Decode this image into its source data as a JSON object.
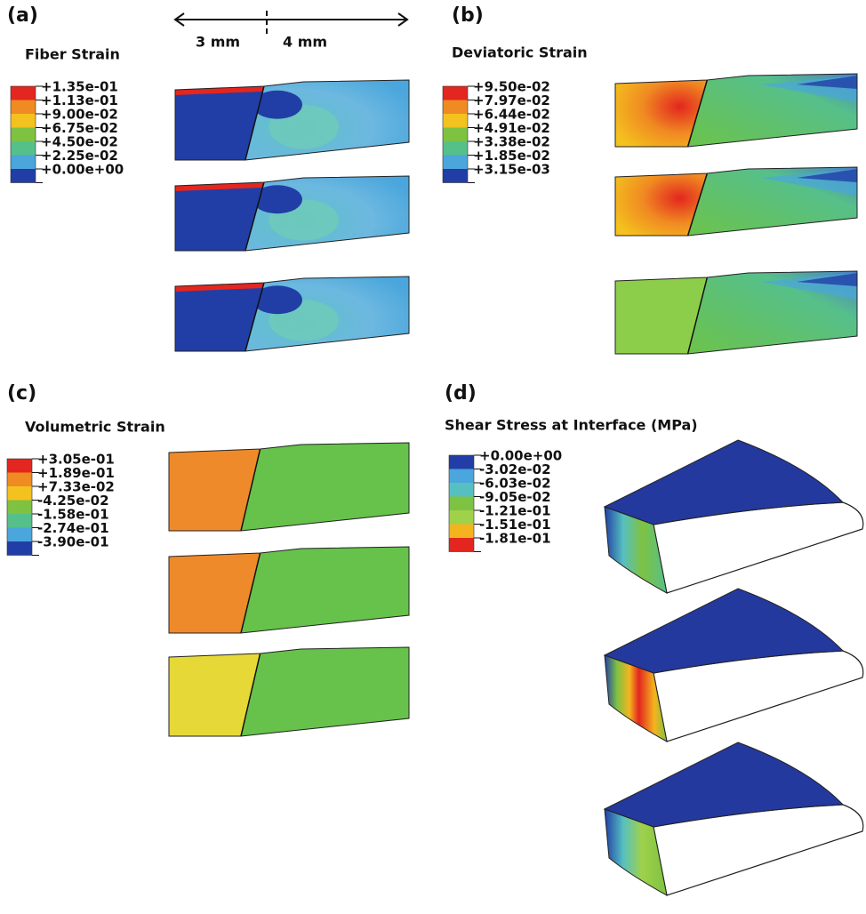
{
  "scale": {
    "left": "3 mm",
    "right": "4 mm"
  },
  "panels": [
    {
      "label": "(a)",
      "title": "Fiber Strain",
      "legend": {
        "labels": [
          "+1.35e-01",
          "+1.13e-01",
          "+9.00e-02",
          "+6.75e-02",
          "+4.50e-02",
          "+2.25e-02",
          "+0.00e+00"
        ],
        "colors": [
          "#e3261f",
          "#f08a22",
          "#f4c21e",
          "#7ec242",
          "#56c08a",
          "#4aa6dc",
          "#213ea6"
        ]
      }
    },
    {
      "label": "(b)",
      "title": "Deviatoric Strain",
      "legend": {
        "labels": [
          "+9.50e-02",
          "+7.97e-02",
          "+6.44e-02",
          "+4.91e-02",
          "+3.38e-02",
          "+1.85e-02",
          "+3.15e-03"
        ],
        "colors": [
          "#e3261f",
          "#f08a22",
          "#f4c21e",
          "#7ec242",
          "#56c08a",
          "#4aa6dc",
          "#213ea6"
        ]
      }
    },
    {
      "label": "(c)",
      "title": "Volumetric Strain",
      "legend": {
        "labels": [
          "+3.05e-01",
          "+1.89e-01",
          "+7.33e-02",
          "-4.25e-02",
          "-1.58e-01",
          "-2.74e-01",
          "-3.90e-01"
        ],
        "colors": [
          "#e3261f",
          "#f08a22",
          "#f4c21e",
          "#7ec242",
          "#56c08a",
          "#4aa6dc",
          "#213ea6"
        ]
      }
    },
    {
      "label": "(d)",
      "title": "Shear Stress at Interface (MPa)",
      "legend": {
        "labels": [
          "+0.00e+00",
          "-3.02e-02",
          "-6.03e-02",
          "-9.05e-02",
          "-1.21e-01",
          "-1.51e-01",
          "-1.81e-01"
        ],
        "colors": [
          "#213ea6",
          "#4aa6dc",
          "#56c0c0",
          "#7ec242",
          "#9fd14a",
          "#f4b41e",
          "#e3261f"
        ]
      }
    }
  ]
}
